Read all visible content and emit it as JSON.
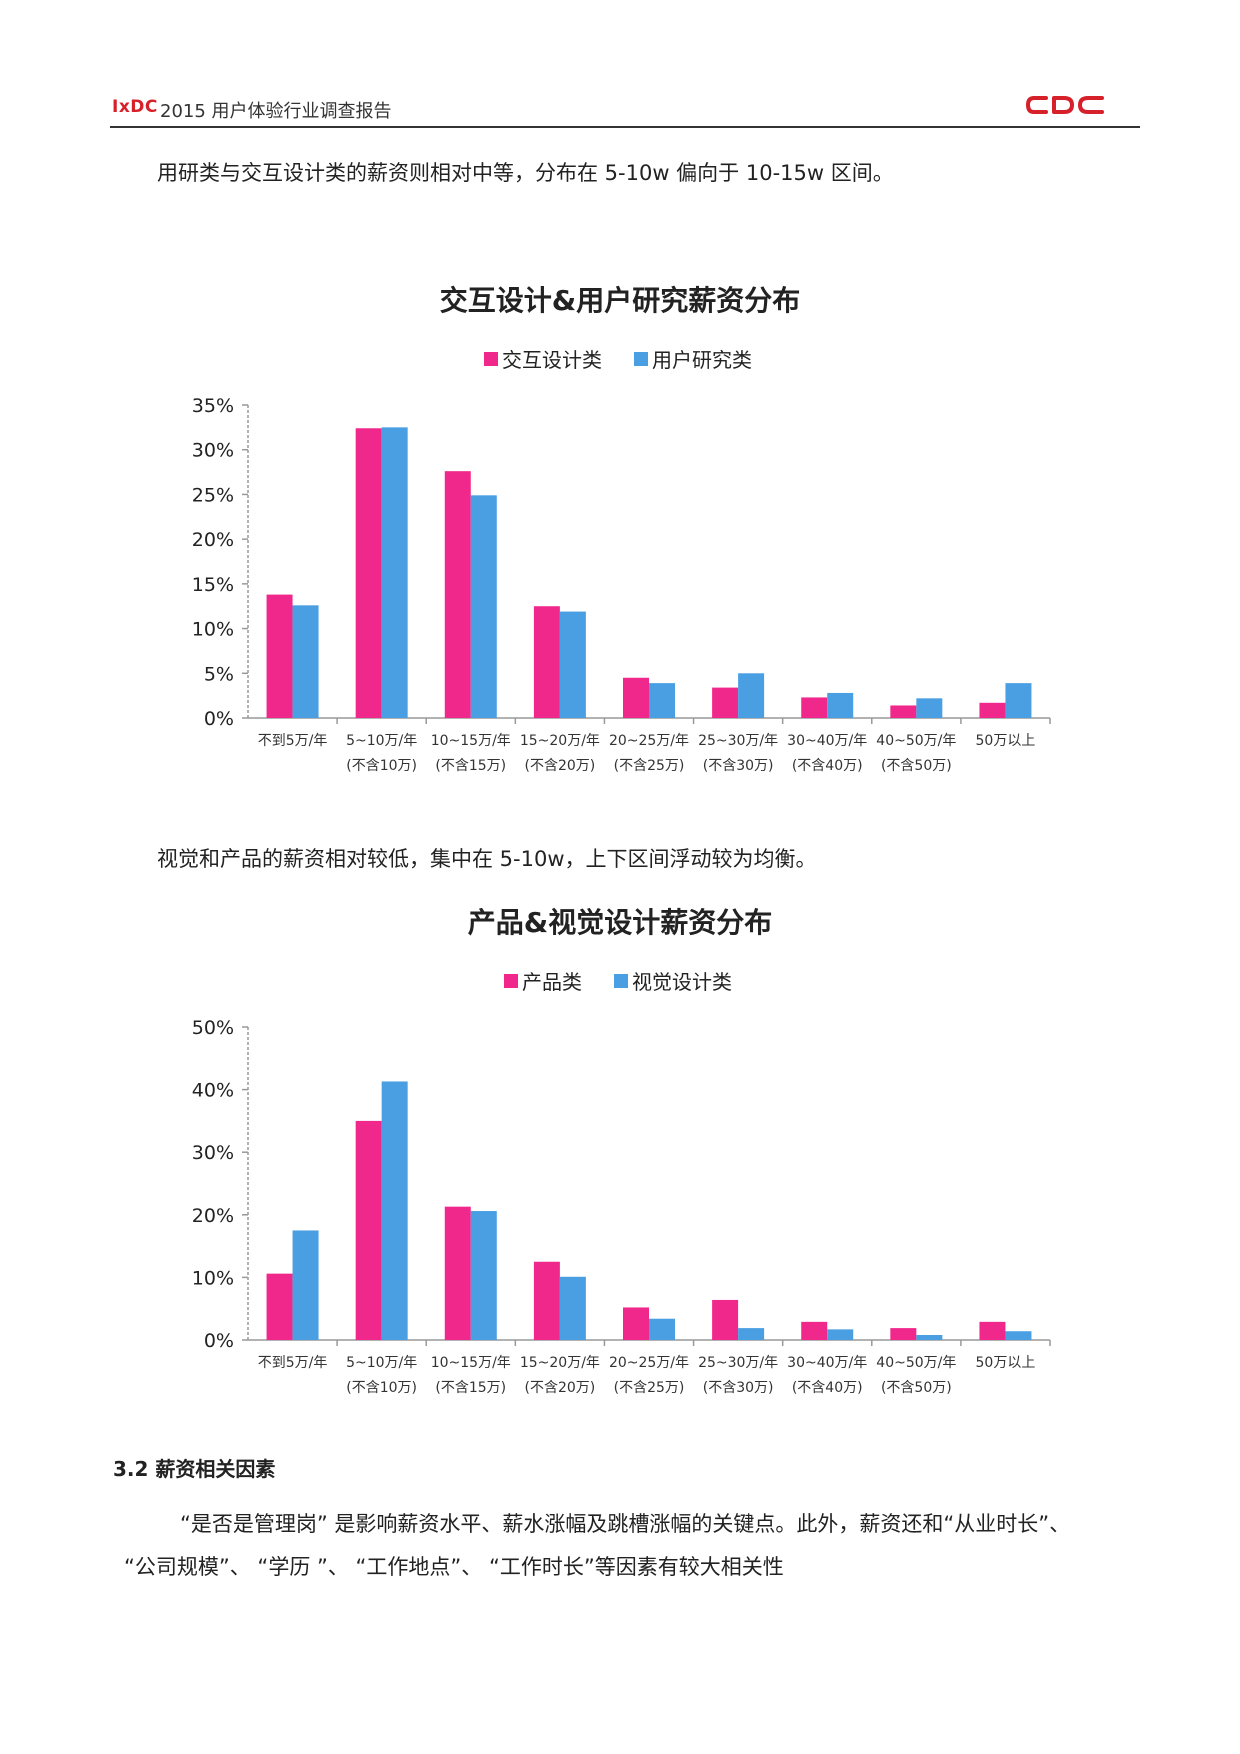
{
  "header": {
    "brand": "IxDC",
    "title": "2015 用户体验行业调查报告",
    "logo_text": "CDC",
    "logo_color": "#d6202a"
  },
  "paragraphs": {
    "p1": "用研类与交互设计类的薪资则相对中等，分布在 5-10w 偏向于 10-15w 区间。",
    "p2": "视觉和产品的薪资相对较低，集中在 5-10w，上下区间浮动较为均衡。",
    "section_title": "3.2 薪资相关因素",
    "p3_line1": "“是否是管理岗” 是影响薪资水平、薪水涨幅及跳槽涨幅的关键点。此外，薪资还和“从业时长”、",
    "p3_line2": "“公司规模”、 “学历 ”、 “工作地点”、 “工作时长”等因素有较大相关性"
  },
  "colors": {
    "pink": "#f0288c",
    "blue": "#4a9fe3",
    "axis": "#999999"
  },
  "chart_data": [
    {
      "type": "bar",
      "title": "交互设计&用户研究薪资分布",
      "categories": [
        [
          "不到5万/年",
          ""
        ],
        [
          "5~10万/年",
          "(不含10万)"
        ],
        [
          "10~15万/年",
          "(不含15万)"
        ],
        [
          "15~20万/年",
          "(不含20万)"
        ],
        [
          "20~25万/年",
          "(不含25万)"
        ],
        [
          "25~30万/年",
          "(不含30万)"
        ],
        [
          "30~40万/年",
          "(不含40万)"
        ],
        [
          "40~50万/年",
          "(不含50万)"
        ],
        [
          "50万以上",
          ""
        ]
      ],
      "series": [
        {
          "name": "交互设计类",
          "color": "#f0288c",
          "values": [
            13.8,
            32.4,
            27.6,
            12.5,
            4.5,
            3.4,
            2.3,
            1.4,
            1.7
          ]
        },
        {
          "name": "用户研究类",
          "color": "#4a9fe3",
          "values": [
            12.6,
            32.5,
            24.9,
            11.9,
            3.9,
            5.0,
            2.8,
            2.2,
            3.9
          ]
        }
      ],
      "ylim": [
        0,
        35
      ],
      "yticks": [
        "0%",
        "5%",
        "10%",
        "15%",
        "20%",
        "25%",
        "30%",
        "35%"
      ],
      "ytick_values": [
        0,
        5,
        10,
        15,
        20,
        25,
        30,
        35
      ],
      "legend": "top-center",
      "grid": false
    },
    {
      "type": "bar",
      "title": "产品&视觉设计薪资分布",
      "categories": [
        [
          "不到5万/年",
          ""
        ],
        [
          "5~10万/年",
          "(不含10万)"
        ],
        [
          "10~15万/年",
          "(不含15万)"
        ],
        [
          "15~20万/年",
          "(不含20万)"
        ],
        [
          "20~25万/年",
          "(不含25万)"
        ],
        [
          "25~30万/年",
          "(不含30万)"
        ],
        [
          "30~40万/年",
          "(不含40万)"
        ],
        [
          "40~50万/年",
          "(不含50万)"
        ],
        [
          "50万以上",
          ""
        ]
      ],
      "series": [
        {
          "name": "产品类",
          "color": "#f0288c",
          "values": [
            10.6,
            35.0,
            21.3,
            12.5,
            5.2,
            6.4,
            2.9,
            1.9,
            2.9
          ]
        },
        {
          "name": "视觉设计类",
          "color": "#4a9fe3",
          "values": [
            17.5,
            41.3,
            20.6,
            10.1,
            3.4,
            1.9,
            1.7,
            0.8,
            1.4
          ]
        }
      ],
      "ylim": [
        0,
        50
      ],
      "yticks": [
        "0%",
        "10%",
        "20%",
        "30%",
        "40%",
        "50%"
      ],
      "ytick_values": [
        0,
        10,
        20,
        30,
        40,
        50
      ],
      "legend": "top-center",
      "grid": false
    }
  ]
}
